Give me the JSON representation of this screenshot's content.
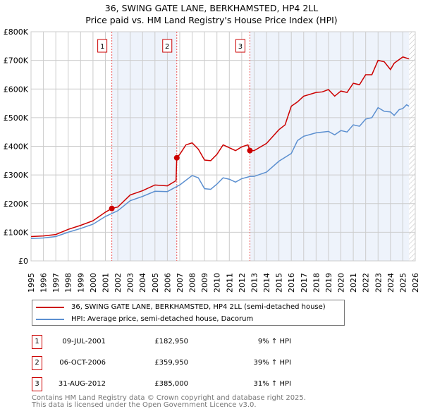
{
  "title": "36, SWING GATE LANE, BERKHAMSTED, HP4 2LL",
  "subtitle": "Price paid vs. HM Land Registry's House Price Index (HPI)",
  "chart_data": {
    "type": "line",
    "xlim": [
      1995,
      2026
    ],
    "ylim": [
      0,
      800000
    ],
    "yticks": [
      0,
      100000,
      200000,
      300000,
      400000,
      500000,
      600000,
      700000,
      800000
    ],
    "ytick_labels": [
      "£0",
      "£100K",
      "£200K",
      "£300K",
      "£400K",
      "£500K",
      "£600K",
      "£700K",
      "£800K"
    ],
    "xticks": [
      "1995",
      "1996",
      "1997",
      "1998",
      "1999",
      "2000",
      "2001",
      "2002",
      "2003",
      "2004",
      "2005",
      "2006",
      "2007",
      "2008",
      "2009",
      "2010",
      "2011",
      "2012",
      "2013",
      "2014",
      "2015",
      "2016",
      "2017",
      "2018",
      "2019",
      "2020",
      "2021",
      "2022",
      "2023",
      "2024",
      "2025",
      "2026"
    ],
    "hatch_from": 2025.5,
    "series": [
      {
        "name": "36, SWING GATE LANE, BERKHAMSTED, HP4 2LL (semi-detached house)",
        "color": "#cc0000",
        "x": [
          1995,
          1996,
          1997,
          1998,
          1999,
          2000,
          2001,
          2001.52,
          2002,
          2003,
          2004,
          2005,
          2006,
          2006.7,
          2006.76,
          2007,
          2007.5,
          2008,
          2008.5,
          2009,
          2009.5,
          2010,
          2010.5,
          2011,
          2011.5,
          2012,
          2012.5,
          2012.66,
          2013,
          2014,
          2015,
          2015.5,
          2016,
          2016.5,
          2017,
          2018,
          2018.5,
          2019,
          2019.5,
          2020,
          2020.5,
          2021,
          2021.5,
          2022,
          2022.5,
          2023,
          2023.5,
          2024,
          2024.3,
          2025,
          2025.5
        ],
        "y": [
          85000,
          87000,
          92000,
          110000,
          124000,
          140000,
          170000,
          182950,
          188000,
          230000,
          245000,
          265000,
          262000,
          280000,
          359950,
          372000,
          405000,
          412000,
          390000,
          352000,
          350000,
          372000,
          405000,
          395000,
          385000,
          398000,
          405000,
          385000,
          385000,
          410000,
          458000,
          475000,
          540000,
          555000,
          575000,
          588000,
          590000,
          598000,
          575000,
          593000,
          588000,
          620000,
          615000,
          650000,
          650000,
          700000,
          695000,
          668000,
          690000,
          712000,
          705000
        ]
      },
      {
        "name": "HPI: Average price, semi-detached house, Dacorum",
        "color": "#5b8fd0",
        "x": [
          1995,
          1996,
          1997,
          1998,
          1999,
          2000,
          2001,
          2001.5,
          2002,
          2003,
          2004,
          2005,
          2006,
          2007,
          2008,
          2008.5,
          2009,
          2009.5,
          2010,
          2010.5,
          2011,
          2011.5,
          2012,
          2012.7,
          2013,
          2014,
          2015,
          2016,
          2016.5,
          2017,
          2018,
          2019,
          2019.5,
          2020,
          2020.5,
          2021,
          2021.5,
          2022,
          2022.5,
          2023,
          2023.5,
          2024,
          2024.3,
          2024.7,
          2025,
          2025.3,
          2025.5
        ],
        "y": [
          78000,
          80000,
          85000,
          100000,
          113000,
          128000,
          155000,
          165000,
          175000,
          210000,
          225000,
          243000,
          242000,
          265000,
          298000,
          290000,
          252000,
          250000,
          268000,
          290000,
          285000,
          275000,
          287000,
          295000,
          295000,
          310000,
          348000,
          375000,
          420000,
          435000,
          447000,
          452000,
          440000,
          455000,
          450000,
          475000,
          470000,
          495000,
          500000,
          535000,
          522000,
          520000,
          508000,
          528000,
          532000,
          545000,
          540000
        ]
      }
    ],
    "sales": [
      {
        "id": "1",
        "x": 2001.52,
        "price": 182950,
        "date": "09-JUL-2001",
        "price_label": "£182,950",
        "hpi": "9% ↑ HPI"
      },
      {
        "id": "2",
        "x": 2006.76,
        "price": 359950,
        "date": "06-OCT-2006",
        "price_label": "£359,950",
        "hpi": "39% ↑ HPI"
      },
      {
        "id": "3",
        "x": 2012.66,
        "price": 385000,
        "date": "31-AUG-2012",
        "price_label": "£385,000",
        "hpi": "31% ↑ HPI"
      }
    ]
  },
  "legend": {
    "price": "36, SWING GATE LANE, BERKHAMSTED, HP4 2LL (semi-detached house)",
    "hpi": "HPI: Average price, semi-detached house, Dacorum"
  },
  "footer": {
    "line1": "Contains HM Land Registry data © Crown copyright and database right 2025.",
    "line2": "This data is licensed under the Open Government Licence v3.0."
  }
}
